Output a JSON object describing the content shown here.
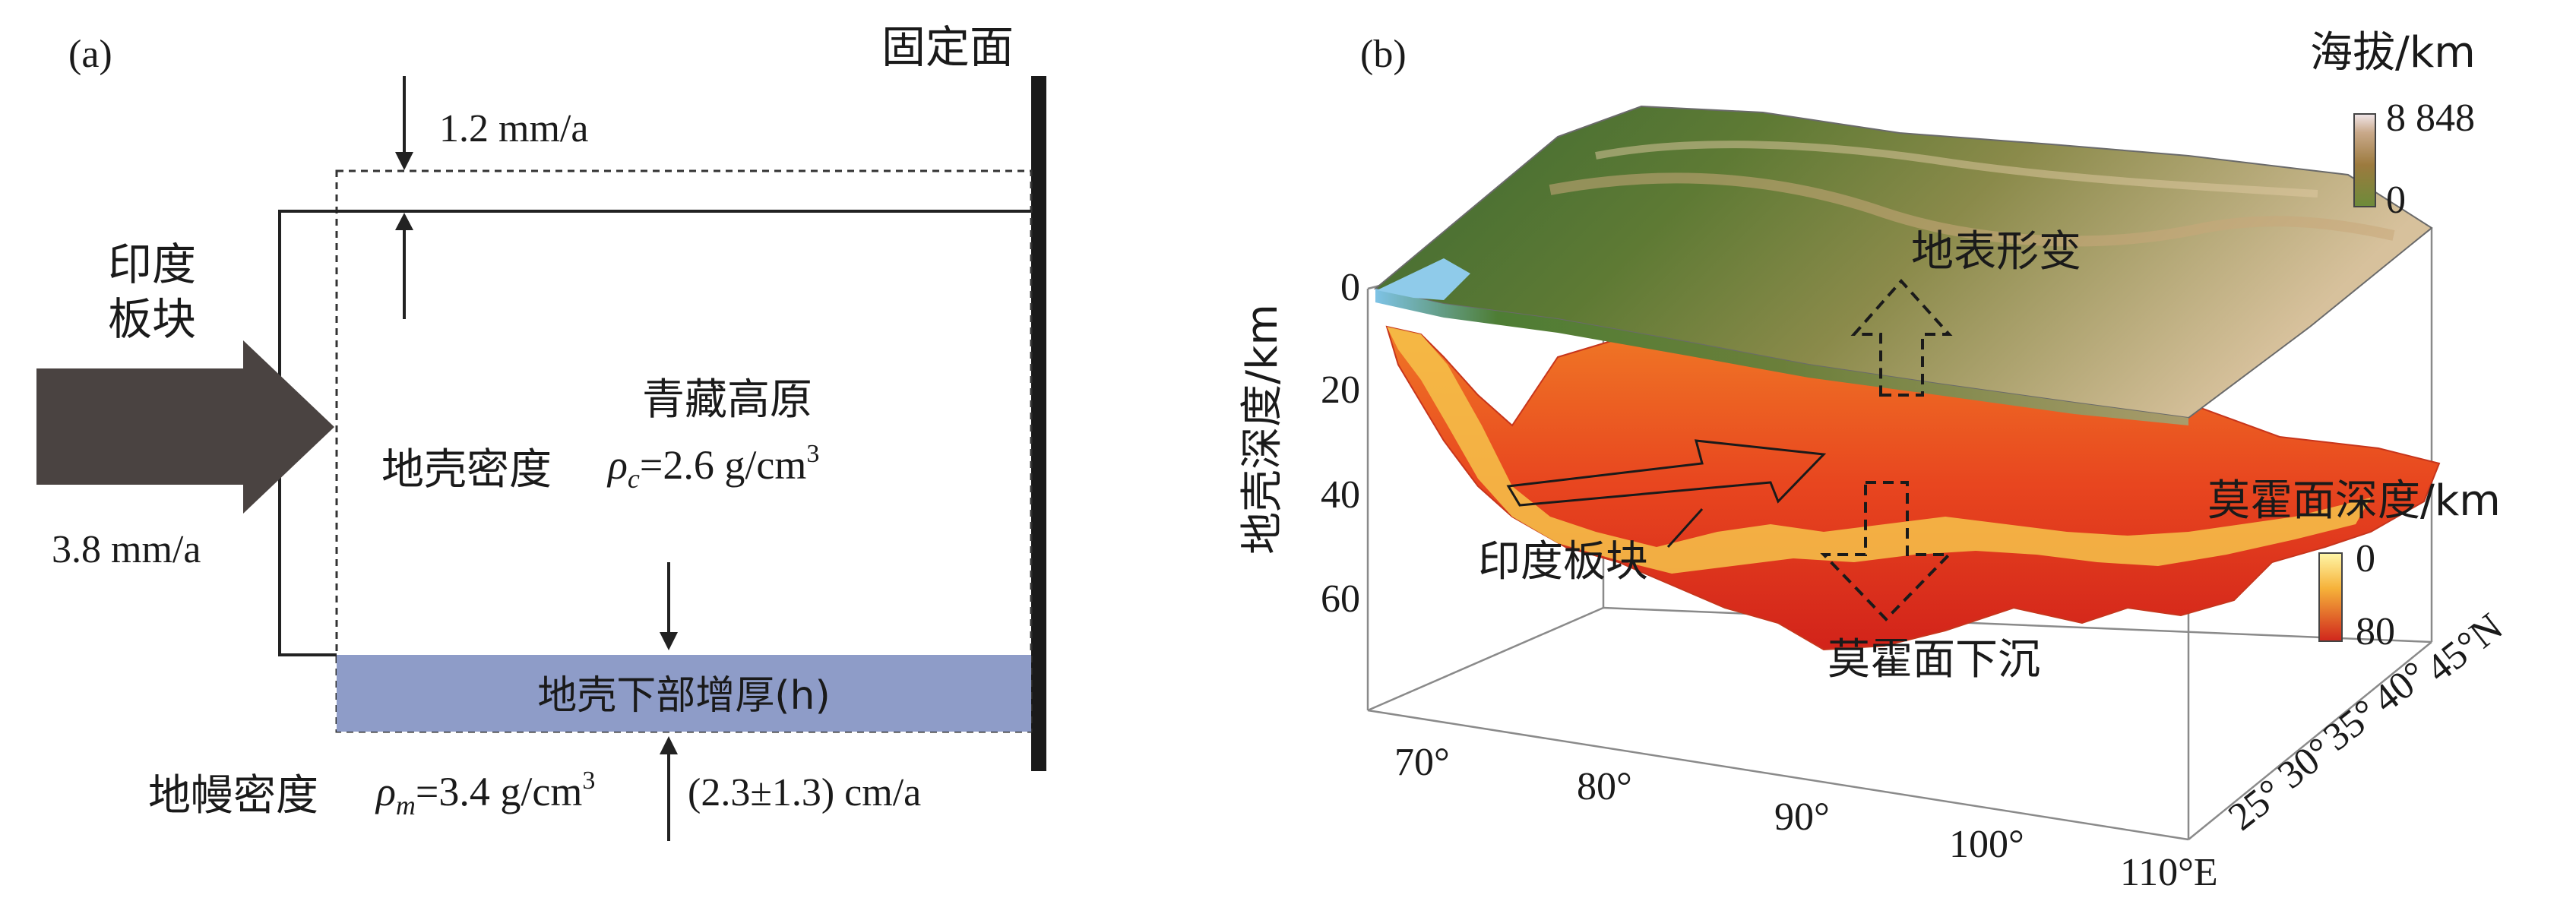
{
  "panel_a": {
    "label": "(a)",
    "fixed_face": "固定面",
    "top_rate": "1.2 mm/a",
    "india_plate_line1": "印度",
    "india_plate_line2": "板块",
    "push_rate": "3.8 mm/a",
    "plateau": "青藏高原",
    "crust_density_label": "地壳密度",
    "crust_density_symbol": "ρ",
    "crust_density_sub": "c",
    "crust_density_value": "=2.6 g/cm",
    "crust_density_exp": "3",
    "lower_crust": "地壳下部增厚(h)",
    "mantle_density_label": "地幔密度",
    "mantle_density_symbol": "ρ",
    "mantle_density_sub": "m",
    "mantle_density_value": "=3.4 g/cm",
    "mantle_density_exp": "3",
    "moho_rate": "(2.3±1.3) cm/a",
    "colors": {
      "arrow": "#4a4341",
      "lower_crust_fill": "#8e9cc8",
      "wall": "#1a1a1a"
    }
  },
  "panel_b": {
    "label": "(b)",
    "elevation_title": "海拔/km",
    "elevation_max": "8 848",
    "elevation_min": "0",
    "surface_deformation": "地表形变",
    "india_plate": "印度板块",
    "moho_subsidence": "莫霍面下沉",
    "moho_depth_title": "莫霍面深度/km",
    "moho_min": "0",
    "moho_max": "80",
    "y_axis_title": "地壳深度/km",
    "depth_ticks": [
      "0",
      "20",
      "40",
      "60"
    ],
    "lon_ticks": [
      "70°",
      "80°",
      "90°",
      "100°",
      "110°E"
    ],
    "lat_ticks": [
      "25°",
      "30°",
      "35°",
      "40°",
      "45°N"
    ],
    "colors": {
      "terrain_low": "#3f6a2e",
      "terrain_high": "#d8bf96",
      "moho_deep": "#d0261c",
      "moho_shallow": "#ffe97a"
    }
  }
}
